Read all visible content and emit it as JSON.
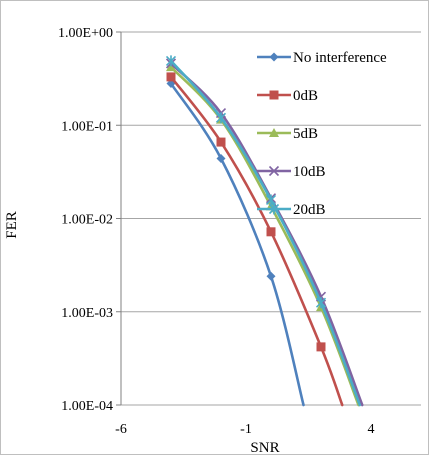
{
  "chart_data": {
    "type": "line",
    "xlabel": "SNR",
    "ylabel": "FER",
    "y_scale": "log",
    "xlim": [
      -6,
      6
    ],
    "ylim": [
      0.0001,
      1
    ],
    "x_ticks": [
      -6,
      -1,
      4
    ],
    "x_tick_labels": [
      "-6",
      "-1",
      "4"
    ],
    "y_ticks": [
      1,
      0.1,
      0.01,
      0.001,
      0.0001
    ],
    "y_tick_labels": [
      "1.00E+00",
      "1.00E-01",
      "1.00E-02",
      "1.00E-03",
      "1.00E-04"
    ],
    "grid": "horizontal",
    "legend_position": "top-right",
    "series": [
      {
        "name": "No interference",
        "color": "#4f81bd",
        "marker": "diamond",
        "x": [
          -4,
          -2,
          0,
          1.3
        ],
        "y": [
          0.28,
          0.044,
          0.0024,
          0.0001
        ]
      },
      {
        "name": "0dB",
        "color": "#c0504d",
        "marker": "square",
        "x": [
          -4,
          -2,
          0,
          2,
          2.85
        ],
        "y": [
          0.33,
          0.066,
          0.0072,
          0.00042,
          0.0001
        ]
      },
      {
        "name": "5dB",
        "color": "#9bbb59",
        "marker": "triangle",
        "x": [
          -4,
          -2,
          0,
          2,
          3.5
        ],
        "y": [
          0.42,
          0.115,
          0.0135,
          0.00112,
          0.0001
        ]
      },
      {
        "name": "10dB",
        "color": "#8064a2",
        "marker": "x",
        "x": [
          -4,
          -2,
          0,
          2,
          3.65
        ],
        "y": [
          0.46,
          0.135,
          0.0165,
          0.00145,
          0.0001
        ]
      },
      {
        "name": "20dB",
        "color": "#4bacc6",
        "marker": "star",
        "x": [
          -4,
          -2,
          0,
          2,
          3.55
        ],
        "y": [
          0.49,
          0.12,
          0.0158,
          0.00125,
          0.0001
        ]
      }
    ]
  }
}
